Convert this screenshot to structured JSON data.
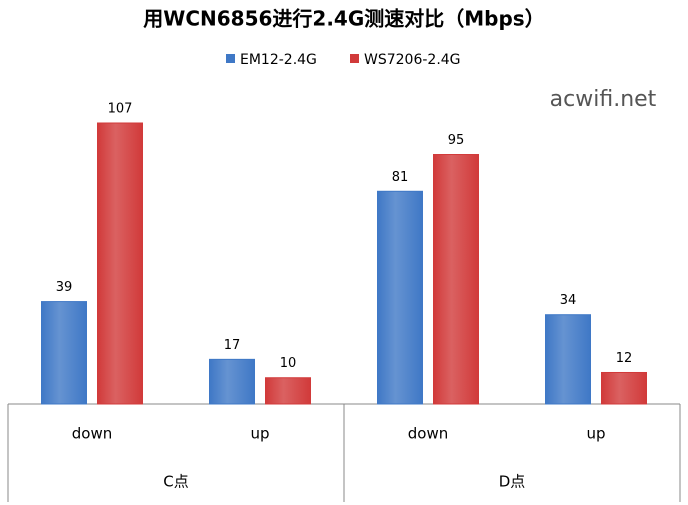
{
  "chart_data": {
    "type": "bar",
    "title": "用WCN6856进行2.4G测速对比（Mbps）",
    "watermark": "acwifi.net",
    "categories": [
      "down",
      "up",
      "down",
      "up"
    ],
    "groups": [
      "C点",
      "D点"
    ],
    "series": [
      {
        "name": "EM12-2.4G",
        "color": "#3f78c6",
        "values": [
          39,
          17,
          81,
          34
        ]
      },
      {
        "name": "WS7206-2.4G",
        "color": "#d13a3a",
        "values": [
          107,
          10,
          95,
          12
        ]
      }
    ]
  }
}
